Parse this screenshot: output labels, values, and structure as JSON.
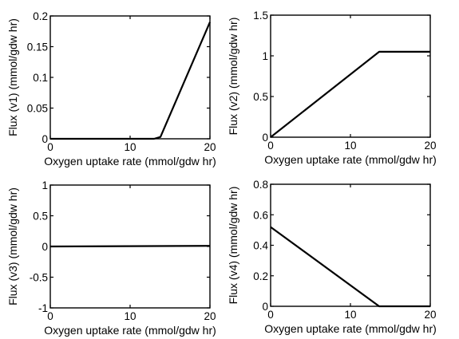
{
  "chart_data": [
    {
      "type": "line",
      "xlabel": "Oxygen uptake rate (mmol/gdw hr)",
      "ylabel": "Flux (v1) (mmol/gdw hr)",
      "xlim": [
        0,
        20
      ],
      "ylim": [
        0,
        0.2
      ],
      "xticks": [
        "0",
        "10",
        "20"
      ],
      "yticks": [
        "0",
        "0.05",
        "0.1",
        "0.15",
        "0.2"
      ],
      "grid": false,
      "series": [
        {
          "x": [
            0,
            13,
            13.8,
            20
          ],
          "y": [
            0,
            0,
            0.003,
            0.19
          ]
        }
      ]
    },
    {
      "type": "line",
      "xlabel": "Oxygen uptake rate (mmol/gdw hr)",
      "ylabel": "Flux (v2) (mmol/gdw hr)",
      "xlim": [
        0,
        20
      ],
      "ylim": [
        0,
        1.5
      ],
      "xticks": [
        "0",
        "10",
        "20"
      ],
      "yticks": [
        "0",
        "0.5",
        "1",
        "1.5"
      ],
      "grid": false,
      "series": [
        {
          "x": [
            0,
            13.6,
            20
          ],
          "y": [
            0,
            1.05,
            1.05
          ]
        }
      ]
    },
    {
      "type": "line",
      "xlabel": "Oxygen uptake rate (mmol/gdw hr)",
      "ylabel": "Flux (v3) (mmol/gdw hr)",
      "xlim": [
        0,
        20
      ],
      "ylim": [
        -1,
        1
      ],
      "xticks": [
        "0",
        "10",
        "20"
      ],
      "yticks": [
        "-1",
        "-0.5",
        "0",
        "0.5",
        "1"
      ],
      "grid": false,
      "series": [
        {
          "x": [
            0,
            20
          ],
          "y": [
            0,
            0.01
          ]
        }
      ]
    },
    {
      "type": "line",
      "xlabel": "Oxygen uptake rate (mmol/gdw hr)",
      "ylabel": "Flux (v4) (mmol/gdw hr)",
      "xlim": [
        0,
        20
      ],
      "ylim": [
        0,
        0.8
      ],
      "xticks": [
        "0",
        "10",
        "20"
      ],
      "yticks": [
        "0",
        "0.2",
        "0.4",
        "0.6",
        "0.8"
      ],
      "grid": false,
      "series": [
        {
          "x": [
            0,
            13.6,
            20
          ],
          "y": [
            0.52,
            0,
            0
          ]
        }
      ]
    }
  ]
}
